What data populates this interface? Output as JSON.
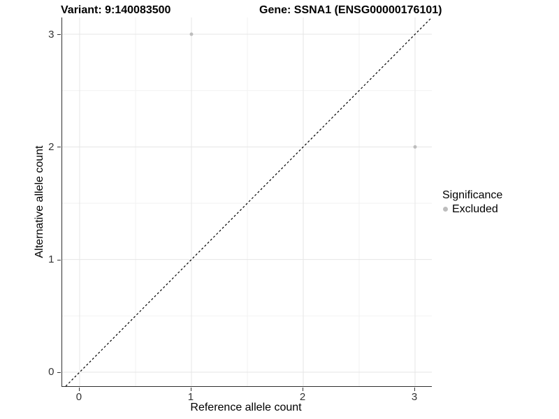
{
  "header": {
    "variant_title": "Variant: 9:140083500",
    "gene_title": "Gene: SSNA1 (ENSG00000176101)"
  },
  "axes": {
    "x_label": "Reference allele count",
    "y_label": "Alternative allele count",
    "x_ticks": [
      "0",
      "1",
      "2",
      "3"
    ],
    "y_ticks": [
      "0",
      "1",
      "2",
      "3"
    ]
  },
  "legend": {
    "title": "Significance",
    "items": [
      {
        "label": "Excluded",
        "marker": "circle-icon",
        "color": "#bdbdbd"
      }
    ]
  },
  "colors": {
    "background": "#ffffff",
    "grid_major": "#e6e6e6",
    "grid_minor": "#f2f2f2",
    "axis_line": "#2f2f2f",
    "tick_mark": "#333333",
    "tick_text": "#333333",
    "title_text": "#000000",
    "point": "#bdbdbd",
    "reference_line": "#000000"
  },
  "chart_data": {
    "type": "scatter",
    "title": "Variant: 9:140083500   Gene: SSNA1 (ENSG00000176101)",
    "xlabel": "Reference allele count",
    "ylabel": "Alternative allele count",
    "xlim": [
      -0.156,
      3.15
    ],
    "ylim": [
      -0.124,
      3.149
    ],
    "x_major_ticks": [
      0,
      1,
      2,
      3
    ],
    "y_major_ticks": [
      0,
      1,
      2,
      3
    ],
    "x_minor_ticks": [
      0.5,
      1.5,
      2.5
    ],
    "y_minor_ticks": [
      0.5,
      1.5,
      2.5
    ],
    "grid": true,
    "legend_position": "right",
    "point_radius": 2.5,
    "series": [
      {
        "name": "Excluded",
        "color": "#bdbdbd",
        "points": [
          {
            "x": 1,
            "y": 3
          },
          {
            "x": 3,
            "y": 2
          }
        ]
      }
    ],
    "reference_line": {
      "type": "identity",
      "slope": 1,
      "intercept": 0,
      "style": "dashed",
      "color": "#000000"
    }
  }
}
